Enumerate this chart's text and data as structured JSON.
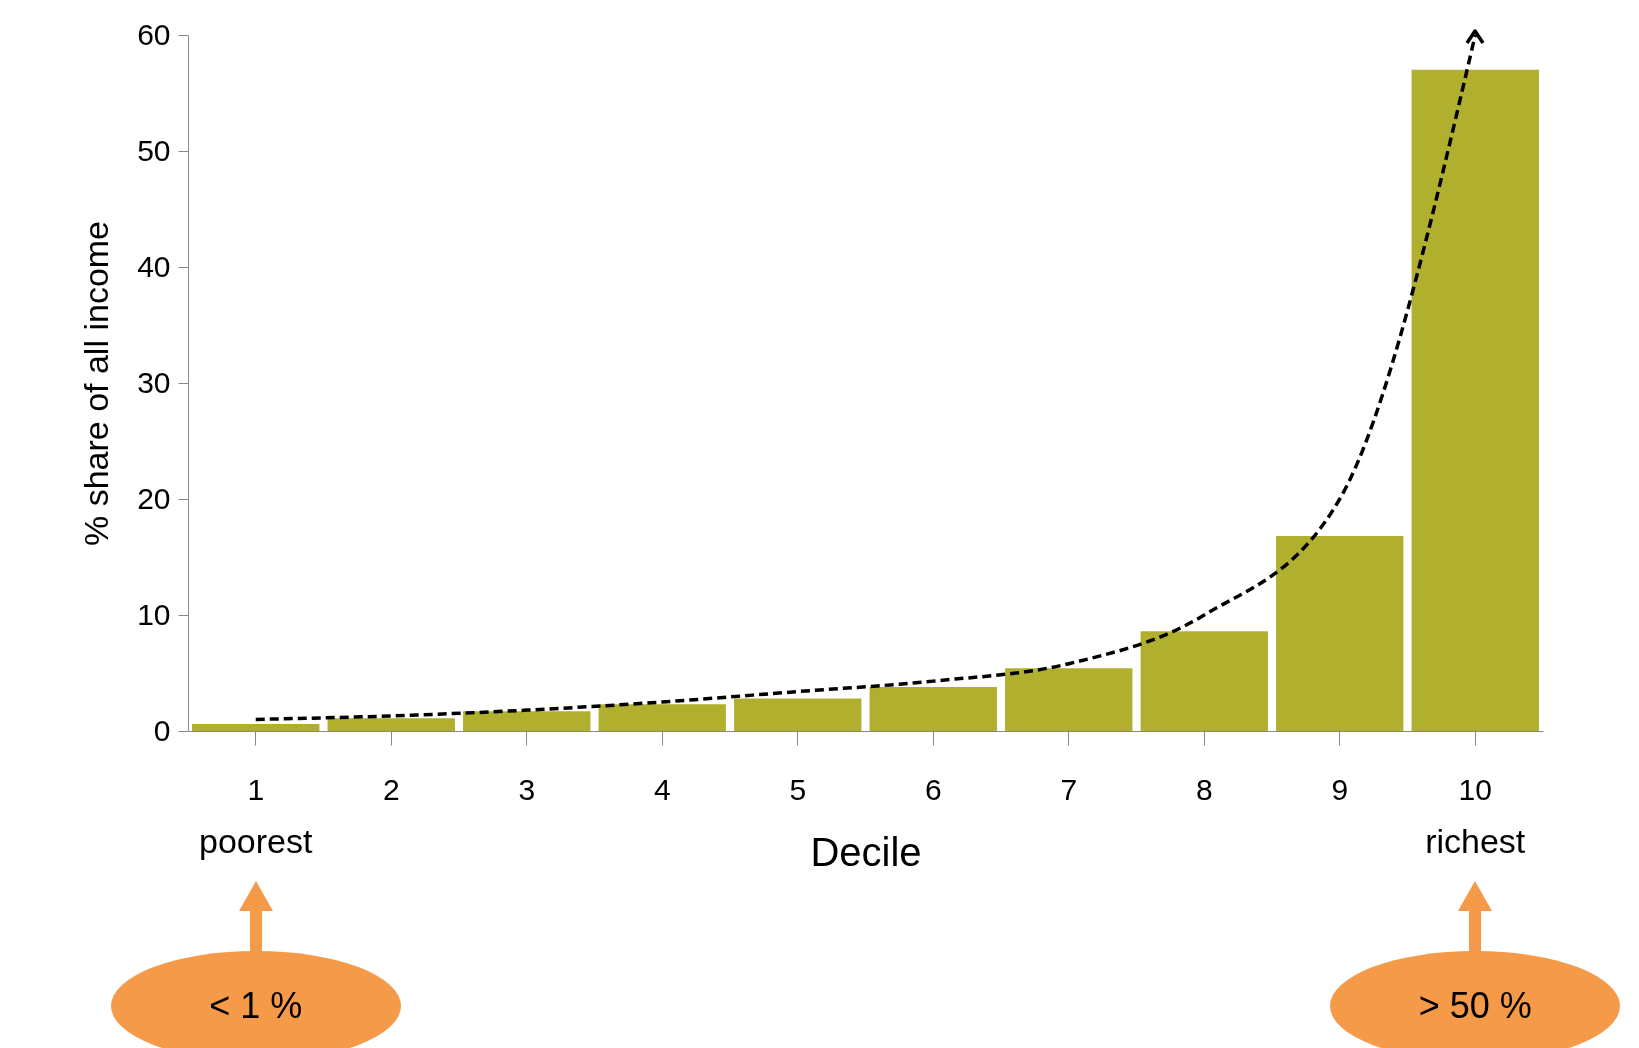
{
  "chart_data": {
    "type": "bar",
    "xlabel": "Decile",
    "ylabel": "% share of all income",
    "categories": [
      "1",
      "2",
      "3",
      "4",
      "5",
      "6",
      "7",
      "8",
      "9",
      "10"
    ],
    "series": [
      {
        "color": "#b0b02e",
        "values": [
          0.6,
          1.1,
          1.7,
          2.3,
          2.8,
          3.8,
          5.4,
          8.6,
          16.8,
          57.0
        ]
      },
      {
        "type": "line",
        "color": "#000000",
        "line_style": "dashed",
        "values": [
          1.0,
          1.3,
          1.8,
          2.5,
          3.4,
          4.3,
          5.8,
          10.0,
          20.0,
          60.0
        ]
      }
    ],
    "ylim": [
      0,
      60
    ],
    "yticks": [
      0,
      10,
      20,
      30,
      40,
      50,
      60
    ],
    "annotations": [
      "poorest",
      "richest",
      "< 1 %",
      "> 50 %"
    ]
  }
}
